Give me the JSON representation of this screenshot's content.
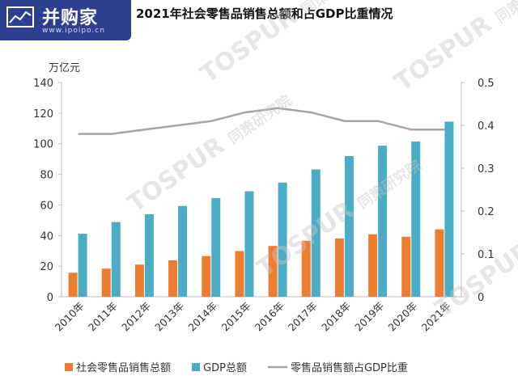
{
  "header": {
    "title": "2021年社会零售品销售总额和占GDP比重情况"
  },
  "logo": {
    "name": "并购家",
    "site": "www.ipoipo.cn"
  },
  "watermark": {
    "text": "TOSPUR",
    "subtext": "同策研究院"
  },
  "chart_data": {
    "type": "bar",
    "categories": [
      "2010年",
      "2011年",
      "2012年",
      "2013年",
      "2014年",
      "2015年",
      "2016年",
      "2017年",
      "2018年",
      "2019年",
      "2020年",
      "2021年"
    ],
    "y_unit_label": "万亿元",
    "ylim": [
      0,
      140
    ],
    "yticks": [
      "0",
      "20",
      "40",
      "60",
      "80",
      "100",
      "120",
      "140"
    ],
    "y2lim": [
      0,
      0.5
    ],
    "y2ticks": [
      "0",
      "0.1",
      "0.2",
      "0.3",
      "0.4",
      "0.5"
    ],
    "series": [
      {
        "name": "社会零售品销售总额",
        "type": "bar",
        "axis": "left",
        "color": "#ed7d31",
        "values": [
          15.7,
          18.4,
          21.0,
          23.8,
          26.6,
          29.9,
          33.2,
          36.6,
          38.1,
          40.8,
          39.2,
          44.1
        ]
      },
      {
        "name": "GDP总额",
        "type": "bar",
        "axis": "left",
        "color": "#4bacc6",
        "values": [
          41.2,
          48.8,
          53.9,
          59.3,
          64.4,
          68.9,
          74.6,
          83.2,
          91.9,
          98.7,
          101.4,
          114.4
        ]
      },
      {
        "name": "零售品销售额占GDP比重",
        "type": "line",
        "axis": "right",
        "color": "#a5a5a5",
        "values": [
          0.38,
          0.38,
          0.39,
          0.4,
          0.41,
          0.43,
          0.44,
          0.43,
          0.41,
          0.41,
          0.39,
          0.39
        ]
      }
    ],
    "legend_position": "bottom",
    "grid": false
  }
}
